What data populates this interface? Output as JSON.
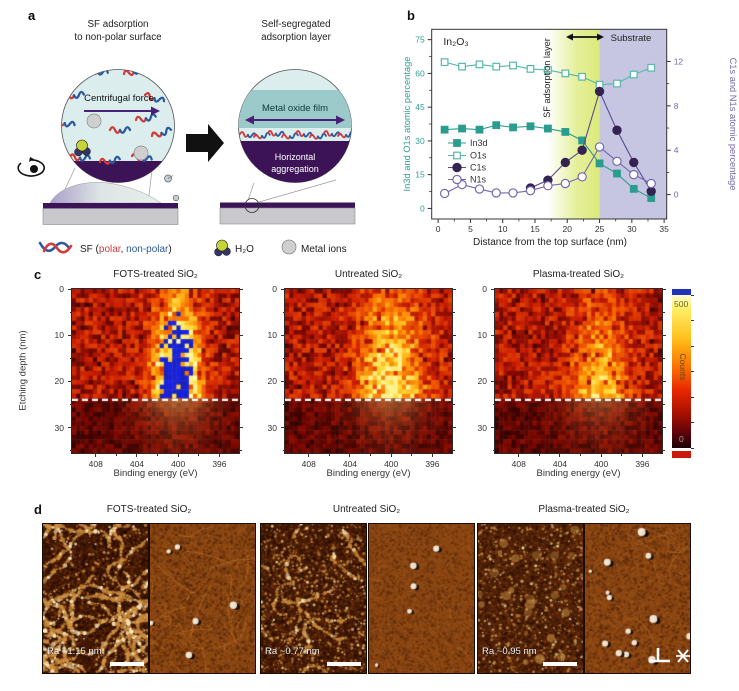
{
  "figure": {
    "background": "#ffffff"
  },
  "panel_a": {
    "label": "a",
    "title_left_line1": "SF adsorption",
    "title_left_line2": "to non-polar surface",
    "title_right_line1": "Self-segregated",
    "title_right_line2": "adsorption layer",
    "left_circle_caption": "Centrifugal force",
    "right_circle_band": "Metal oxide film",
    "right_circle_bottom_line1": "Horizontal",
    "right_circle_bottom_line2": "aggregation",
    "legend": {
      "sf_prefix": "SF (",
      "polar": "polar",
      "separator": ", ",
      "nonpolar": "non-polar",
      "suffix": ")",
      "polar_color": "#d23b3b",
      "nonpolar_color": "#2c5aa0",
      "water": "H₂O",
      "metal_ions": "Metal ions"
    }
  },
  "panel_b": {
    "label": "b",
    "chart_data": {
      "type": "line",
      "xlabel": "Distance from the top surface (nm)",
      "ylabel_left": "In3d and O1s atomic percentage",
      "ylabel_right": "C1s and N1s atomic percentage",
      "xlim": [
        -1,
        35.4
      ],
      "xticks": [
        0,
        5,
        10,
        15,
        20,
        25,
        30,
        35
      ],
      "ylim_left": [
        -4.7,
        79.6
      ],
      "yticks_left": [
        0,
        15,
        30,
        45,
        60,
        75
      ],
      "ylim_right": [
        -2.2,
        14.9
      ],
      "yticks_right": [
        0,
        4,
        8,
        12
      ],
      "axis_color_left": "#2fa093",
      "axis_color_right": "#7668b0",
      "regions": [
        {
          "name": "SF adsorption layer",
          "x0": 17,
          "x1": 25,
          "color": "#dcea7a"
        },
        {
          "name": "Substrate",
          "x0": 25,
          "x1": 35.4,
          "color": "#c7c6e2"
        }
      ],
      "annotations": {
        "material": "In₂O₃",
        "sf_layer": "SF adsorption layer",
        "substrate": "Substrate"
      },
      "series": [
        {
          "name": "In3d",
          "axis": "left",
          "marker": "filled-square",
          "color": "#2a9d8f",
          "x": [
            1,
            3.7,
            6.4,
            9,
            11.6,
            14.3,
            17,
            19.7,
            22.3,
            25,
            27.7,
            30.3,
            33
          ],
          "values": [
            35,
            35.5,
            35,
            37,
            36,
            36.5,
            35.5,
            34,
            30.2,
            20,
            15.5,
            8.7,
            4.6
          ]
        },
        {
          "name": "O1s",
          "axis": "left",
          "marker": "open-square",
          "color": "#56b8ab",
          "x": [
            1,
            3.7,
            6.4,
            9,
            11.6,
            14.3,
            17,
            19.7,
            22.3,
            25,
            27.7,
            30.3,
            33
          ],
          "values": [
            65,
            63,
            64,
            63,
            63.5,
            62,
            61.5,
            60,
            58.5,
            55,
            55.5,
            59.5,
            62.5
          ]
        },
        {
          "name": "C1s",
          "axis": "right",
          "marker": "filled-circle",
          "color": "#5b4a8e",
          "marker_fill": "#342351",
          "x": [
            14.3,
            17,
            19.7,
            22.3,
            25,
            27.7,
            30.3,
            33
          ],
          "values": [
            0.6,
            1.3,
            2.9,
            4,
            9.3,
            5.8,
            2.9,
            0.3
          ]
        },
        {
          "name": "N1s",
          "axis": "right",
          "marker": "open-circle",
          "color": "#7668b0",
          "x": [
            1,
            3.7,
            6.4,
            9,
            11.6,
            14.3,
            17,
            19.7,
            22.3,
            25,
            27.7,
            30.3,
            33
          ],
          "values": [
            0.1,
            0.9,
            0.5,
            0.15,
            0.15,
            0.35,
            0.8,
            1,
            1.6,
            4.3,
            3,
            1.8,
            1
          ]
        }
      ]
    }
  },
  "panel_c": {
    "label": "c",
    "ylabel": "Etching depth (nm)",
    "xlabel": "Binding energy (eV)",
    "xticks": [
      408,
      404,
      400,
      396
    ],
    "yticks": [
      0,
      10,
      20,
      30
    ],
    "xlim": [
      410.3,
      394.1
    ],
    "ylim": [
      0,
      35.5
    ],
    "dashed_line_depth_nm": 24,
    "plots": [
      {
        "title": "FOTS-treated SiO₂"
      },
      {
        "title": "Untreated SiO₂"
      },
      {
        "title": "Plasma-treated SiO₂"
      }
    ],
    "colorbar": {
      "label": "Counts",
      "max": "500",
      "min": "0"
    }
  },
  "panel_d": {
    "label": "d",
    "groups": [
      {
        "title": "FOTS-treated SiO₂",
        "ra": "Ra ~1.15 nm"
      },
      {
        "title": "Untreated SiO₂",
        "ra": "Ra ~0.77 nm"
      },
      {
        "title": "Plasma-treated SiO₂",
        "ra": "Ra ~0.95 nm"
      }
    ]
  }
}
